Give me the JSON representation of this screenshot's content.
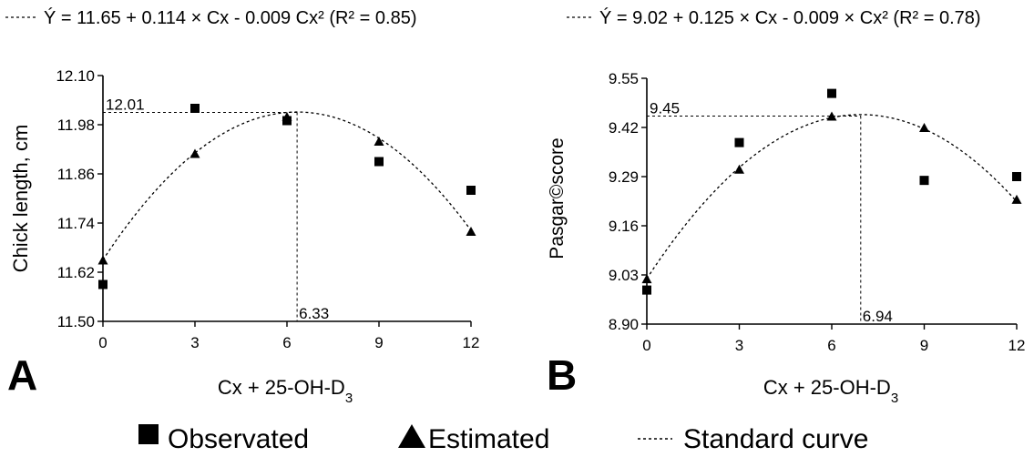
{
  "chart_data": [
    {
      "panel": "A",
      "type": "scatter",
      "equation": "Ý = 11.65 + 0.114 × Cx - 0.009 Cx² (R² = 0.85)",
      "xlabel": "Cx + 25-OH-D",
      "xlabel_sub": "3",
      "ylabel": "Chick length, cm",
      "xlim": [
        0,
        12
      ],
      "ylim": [
        11.5,
        12.1
      ],
      "xticks": [
        0,
        3,
        6,
        9,
        12
      ],
      "yticks": [
        "11.50",
        "11.62",
        "11.74",
        "11.86",
        "11.98",
        "12.10"
      ],
      "series": [
        {
          "name": "Observed",
          "marker": "square",
          "x": [
            0,
            3,
            6,
            9,
            12
          ],
          "y": [
            11.59,
            12.02,
            11.99,
            11.89,
            11.82
          ]
        },
        {
          "name": "Estimated",
          "marker": "triangle",
          "x": [
            0,
            3,
            6,
            9,
            12
          ],
          "y": [
            11.65,
            11.91,
            12.0,
            11.94,
            11.72
          ]
        }
      ],
      "curve": {
        "a": 11.65,
        "b": 0.114,
        "c": -0.009
      },
      "optimum": {
        "x": 6.33,
        "y": 12.01,
        "x_label": "6.33",
        "y_label": "12.01"
      }
    },
    {
      "panel": "B",
      "type": "scatter",
      "equation": "Ý = 9.02 + 0.125 × Cx - 0.009 × Cx² (R² = 0.78)",
      "xlabel": "Cx + 25-OH-D",
      "xlabel_sub": "3",
      "ylabel": "Pasgar©score",
      "xlim": [
        0,
        12
      ],
      "ylim": [
        8.9,
        9.55
      ],
      "xticks": [
        0,
        3,
        6,
        9,
        12
      ],
      "yticks": [
        "8.90",
        "9.03",
        "9.16",
        "9.29",
        "9.42",
        "9.55"
      ],
      "series": [
        {
          "name": "Observed",
          "marker": "square",
          "x": [
            0,
            3,
            6,
            9,
            12
          ],
          "y": [
            8.99,
            9.38,
            9.51,
            9.28,
            9.29
          ]
        },
        {
          "name": "Estimated",
          "marker": "triangle",
          "x": [
            0,
            3,
            6,
            9,
            12
          ],
          "y": [
            9.02,
            9.31,
            9.45,
            9.42,
            9.23
          ]
        }
      ],
      "curve": {
        "a": 9.02,
        "b": 0.125,
        "c": -0.009
      },
      "optimum": {
        "x": 6.94,
        "y": 9.45,
        "x_label": "6.94",
        "y_label": "9.45"
      }
    }
  ],
  "legend": {
    "observed_label": "Observated",
    "estimated_label": "Estimated",
    "curve_label": "Standard curve"
  }
}
